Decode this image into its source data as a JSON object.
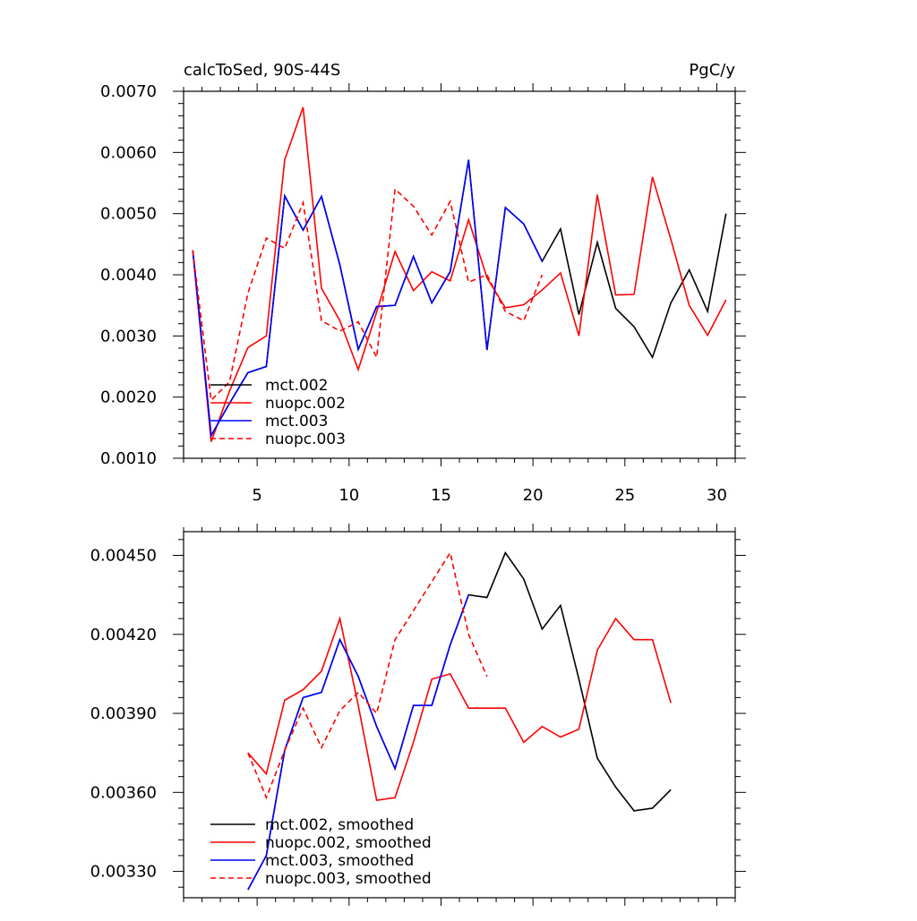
{
  "chart_data": [
    {
      "type": "line",
      "title": "calcToSed, 90S-44S",
      "units": "PgC/y",
      "xlim": [
        1,
        31
      ],
      "ylim": [
        0.001,
        0.007
      ],
      "x_ticks": [
        5,
        10,
        15,
        20,
        25,
        30
      ],
      "x_tick_labels": [
        "5",
        "10",
        "15",
        "20",
        "25",
        "30"
      ],
      "y_ticks": [
        0.001,
        0.002,
        0.003,
        0.004,
        0.005,
        0.006,
        0.007
      ],
      "y_tick_labels": [
        "0.0010",
        "0.0020",
        "0.0030",
        "0.0040",
        "0.0050",
        "0.0060",
        "0.0070"
      ],
      "legend_position": "lower-left",
      "series": [
        {
          "name": "mct.002",
          "color": "#000000",
          "dash": "solid",
          "x": [
            1.5,
            2.5,
            3.5,
            4.5,
            5.5,
            6.5,
            7.5,
            8.5,
            9.5,
            10.5,
            11.5,
            12.5,
            13.5,
            14.5,
            15.5,
            16.5,
            17.5,
            18.5,
            19.5,
            20.5,
            21.5,
            22.5,
            23.5,
            24.5,
            25.5,
            26.5,
            27.5,
            28.5,
            29.5,
            30.5
          ],
          "y": [
            0.0044,
            0.00137,
            0.0019,
            0.0024,
            0.0025,
            0.00529,
            0.00473,
            0.00528,
            0.00416,
            0.00278,
            0.00348,
            0.0035,
            0.0043,
            0.00354,
            0.00405,
            0.00588,
            0.00277,
            0.0051,
            0.00483,
            0.00422,
            0.00475,
            0.00335,
            0.00453,
            0.00345,
            0.00315,
            0.00265,
            0.00354,
            0.00408,
            0.0034,
            0.005
          ]
        },
        {
          "name": "nuopc.002",
          "color": "#ff0000",
          "dash": "solid",
          "x": [
            1.5,
            2.5,
            3.5,
            4.5,
            5.5,
            6.5,
            7.5,
            8.5,
            9.5,
            10.5,
            11.5,
            12.5,
            13.5,
            14.5,
            15.5,
            16.5,
            17.5,
            18.5,
            19.5,
            20.5,
            21.5,
            22.5,
            23.5,
            24.5,
            25.5,
            26.5,
            27.5,
            28.5,
            29.5,
            30.5
          ],
          "y": [
            0.0044,
            0.00127,
            0.0021,
            0.00281,
            0.003,
            0.00588,
            0.00674,
            0.00378,
            0.00325,
            0.00245,
            0.00339,
            0.00438,
            0.00374,
            0.00405,
            0.0039,
            0.0049,
            0.00395,
            0.00346,
            0.00351,
            0.00375,
            0.00403,
            0.003,
            0.00531,
            0.00367,
            0.00368,
            0.0056,
            0.00458,
            0.0035,
            0.00301,
            0.00359
          ]
        },
        {
          "name": "mct.003",
          "color": "#0000ff",
          "dash": "solid",
          "x": [
            1.5,
            2.5,
            3.5,
            4.5,
            5.5,
            6.5,
            7.5,
            8.5,
            9.5,
            10.5,
            11.5,
            12.5,
            13.5,
            14.5,
            15.5,
            16.5,
            17.5,
            18.5,
            19.5,
            20.5
          ],
          "y": [
            0.0044,
            0.00137,
            0.0019,
            0.0024,
            0.0025,
            0.00529,
            0.00473,
            0.00528,
            0.00416,
            0.00278,
            0.00348,
            0.0035,
            0.0043,
            0.00354,
            0.00405,
            0.00588,
            0.00277,
            0.0051,
            0.00483,
            0.00422
          ]
        },
        {
          "name": "nuopc.003",
          "color": "#ff0000",
          "dash": "dashed",
          "x": [
            1.5,
            2.5,
            3.5,
            4.5,
            5.5,
            6.5,
            7.5,
            8.5,
            9.5,
            10.5,
            11.5,
            12.5,
            13.5,
            14.5,
            15.5,
            16.5,
            17.5,
            18.5,
            19.5,
            20.5
          ],
          "y": [
            0.0044,
            0.00195,
            0.00225,
            0.0037,
            0.0046,
            0.00443,
            0.00518,
            0.00325,
            0.00308,
            0.00323,
            0.00265,
            0.0054,
            0.00512,
            0.00465,
            0.0052,
            0.00388,
            0.004,
            0.0034,
            0.00325,
            0.004
          ]
        }
      ]
    },
    {
      "type": "line",
      "xlim": [
        1,
        31
      ],
      "ylim": [
        0.0032,
        0.00459
      ],
      "x_ticks": [
        5,
        10,
        15,
        20,
        25,
        30
      ],
      "y_ticks": [
        0.0033,
        0.0036,
        0.0039,
        0.0042,
        0.0045
      ],
      "y_tick_labels": [
        "0.00330",
        "0.00360",
        "0.00390",
        "0.00420",
        "0.00450"
      ],
      "legend_position": "lower-left",
      "series": [
        {
          "name": "mct.002, smoothed",
          "color": "#000000",
          "dash": "solid",
          "x": [
            4.5,
            5.5,
            6.5,
            7.5,
            8.5,
            9.5,
            10.5,
            11.5,
            12.5,
            13.5,
            14.5,
            15.5,
            16.5,
            17.5,
            18.5,
            19.5,
            20.5,
            21.5,
            22.5,
            23.5,
            24.5,
            25.5,
            26.5,
            27.5
          ],
          "y": [
            0.00323,
            0.00336,
            0.00376,
            0.00396,
            0.00398,
            0.00418,
            0.00404,
            0.00385,
            0.00369,
            0.00393,
            0.00393,
            0.00416,
            0.00435,
            0.00434,
            0.00451,
            0.00441,
            0.00422,
            0.00431,
            0.00403,
            0.00373,
            0.00362,
            0.00353,
            0.00354,
            0.00361
          ]
        },
        {
          "name": "nuopc.002, smoothed",
          "color": "#ff0000",
          "dash": "solid",
          "x": [
            4.5,
            5.5,
            6.5,
            7.5,
            8.5,
            9.5,
            10.5,
            11.5,
            12.5,
            13.5,
            14.5,
            15.5,
            16.5,
            17.5,
            18.5,
            19.5,
            20.5,
            21.5,
            22.5,
            23.5,
            24.5,
            25.5,
            26.5,
            27.5
          ],
          "y": [
            0.00375,
            0.00367,
            0.00395,
            0.00399,
            0.00406,
            0.00426,
            0.00393,
            0.00357,
            0.00358,
            0.00379,
            0.00403,
            0.00405,
            0.00392,
            0.00392,
            0.00392,
            0.00379,
            0.00385,
            0.00381,
            0.00384,
            0.00414,
            0.00426,
            0.00418,
            0.00418,
            0.00394
          ]
        },
        {
          "name": "mct.003, smoothed",
          "color": "#0000ff",
          "dash": "solid",
          "x": [
            4.5,
            5.5,
            6.5,
            7.5,
            8.5,
            9.5,
            10.5,
            11.5,
            12.5,
            13.5,
            14.5,
            15.5,
            16.5
          ],
          "y": [
            0.00323,
            0.00336,
            0.00376,
            0.00396,
            0.00398,
            0.00418,
            0.00404,
            0.00385,
            0.00369,
            0.00393,
            0.00393,
            0.00416,
            0.00435
          ]
        },
        {
          "name": "nuopc.003, smoothed",
          "color": "#ff0000",
          "dash": "dashed",
          "x": [
            4.5,
            5.5,
            6.5,
            7.5,
            8.5,
            9.5,
            10.5,
            11.5,
            12.5,
            13.5,
            14.5,
            15.5,
            16.5,
            17.5
          ],
          "y": [
            0.00375,
            0.00358,
            0.00376,
            0.00392,
            0.00377,
            0.00391,
            0.00398,
            0.0039,
            0.00418,
            0.00429,
            0.0044,
            0.00451,
            0.0042,
            0.00404
          ]
        }
      ]
    }
  ]
}
